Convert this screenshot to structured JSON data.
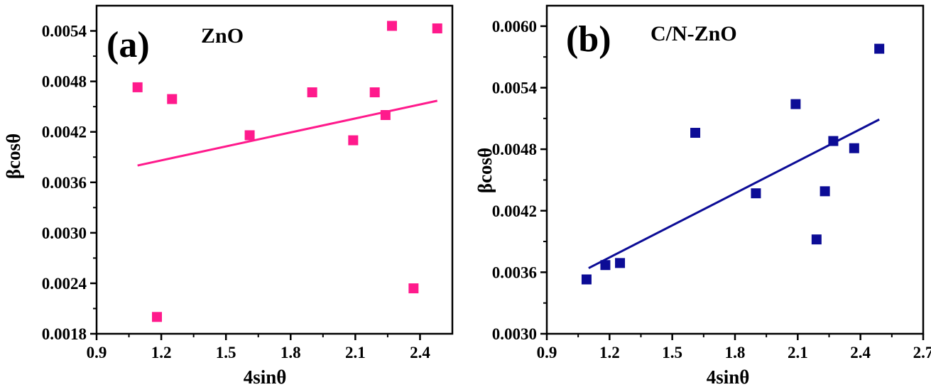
{
  "chart_data": [
    {
      "type": "scatter",
      "panel_label": "(a)",
      "title": "ZnO",
      "xlabel": "4sinθ",
      "ylabel": "βcosθ",
      "xlim": [
        0.9,
        2.55
      ],
      "ylim": [
        0.0018,
        0.0057
      ],
      "xticks": [
        "0.9",
        "1.2",
        "1.5",
        "1.8",
        "2.1",
        "2.4"
      ],
      "xtick_values": [
        0.9,
        1.2,
        1.5,
        1.8,
        2.1,
        2.4
      ],
      "yticks": [
        "0.0018",
        "0.0024",
        "0.0030",
        "0.0036",
        "0.0042",
        "0.0048",
        "0.0054"
      ],
      "ytick_values": [
        0.0018,
        0.0024,
        0.003,
        0.0036,
        0.0042,
        0.0048,
        0.0054
      ],
      "color": "#ff1a8c",
      "points": [
        {
          "x": 1.09,
          "y": 0.00473
        },
        {
          "x": 1.18,
          "y": 0.002
        },
        {
          "x": 1.25,
          "y": 0.00459
        },
        {
          "x": 1.61,
          "y": 0.00416
        },
        {
          "x": 1.9,
          "y": 0.00467
        },
        {
          "x": 2.09,
          "y": 0.0041
        },
        {
          "x": 2.19,
          "y": 0.00467
        },
        {
          "x": 2.24,
          "y": 0.0044
        },
        {
          "x": 2.27,
          "y": 0.00546
        },
        {
          "x": 2.37,
          "y": 0.00234
        },
        {
          "x": 2.48,
          "y": 0.00543
        }
      ],
      "fit_line": {
        "x": [
          1.09,
          2.48
        ],
        "y": [
          0.0038,
          0.00457
        ]
      }
    },
    {
      "type": "scatter",
      "panel_label": "(b)",
      "title": "C/N-ZnO",
      "xlabel": "4sinθ",
      "ylabel": "βcosθ",
      "xlim": [
        0.9,
        2.7
      ],
      "ylim": [
        0.003,
        0.0062
      ],
      "xticks": [
        "0.9",
        "1.2",
        "1.5",
        "1.8",
        "2.1",
        "2.4",
        "2.7"
      ],
      "xtick_values": [
        0.9,
        1.2,
        1.5,
        1.8,
        2.1,
        2.4,
        2.7
      ],
      "yticks": [
        "0.0030",
        "0.0036",
        "0.0042",
        "0.0048",
        "0.0054",
        "0.0060"
      ],
      "ytick_values": [
        0.003,
        0.0036,
        0.0042,
        0.0048,
        0.0054,
        0.006
      ],
      "color": "#0c0c96",
      "points": [
        {
          "x": 1.09,
          "y": 0.00353
        },
        {
          "x": 1.18,
          "y": 0.00367
        },
        {
          "x": 1.25,
          "y": 0.00369
        },
        {
          "x": 1.61,
          "y": 0.00496
        },
        {
          "x": 1.9,
          "y": 0.00437
        },
        {
          "x": 2.09,
          "y": 0.00524
        },
        {
          "x": 2.19,
          "y": 0.00392
        },
        {
          "x": 2.23,
          "y": 0.00439
        },
        {
          "x": 2.27,
          "y": 0.00488
        },
        {
          "x": 2.37,
          "y": 0.00481
        },
        {
          "x": 2.49,
          "y": 0.00578
        }
      ],
      "fit_line": {
        "x": [
          1.1,
          2.49
        ],
        "y": [
          0.00364,
          0.00509
        ]
      }
    }
  ]
}
